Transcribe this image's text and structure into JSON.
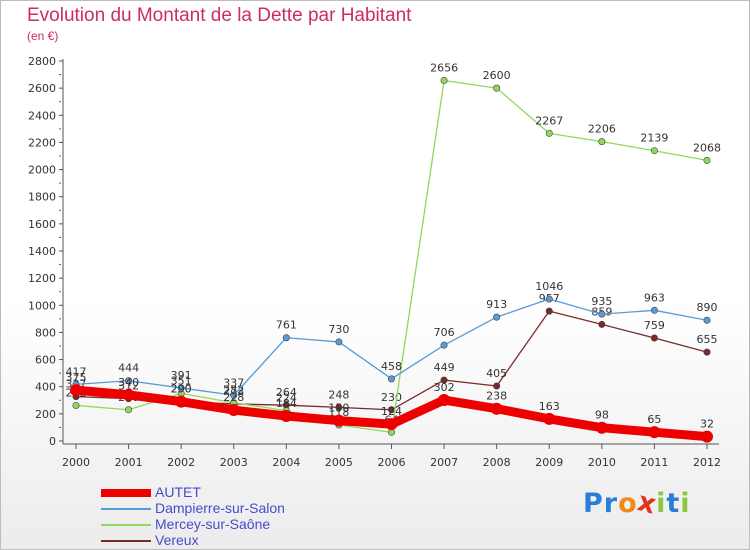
{
  "title": "Evolution du Montant de la Dette par Habitant",
  "subtitle": "(en €)",
  "logo_text": "Proxiti",
  "chart_data": {
    "type": "line",
    "x": [
      "2000",
      "2001",
      "2002",
      "2003",
      "2004",
      "2005",
      "2006",
      "2007",
      "2008",
      "2009",
      "2010",
      "2011",
      "2012"
    ],
    "ylim": [
      0,
      2800
    ],
    "yticks": [
      0,
      200,
      400,
      600,
      800,
      1000,
      1200,
      1400,
      1600,
      1800,
      2000,
      2200,
      2400,
      2600,
      2800
    ],
    "grid": false,
    "legend_position": "bottom-left",
    "series": [
      {
        "name": "Vereux",
        "color": "#7a2a2a",
        "values": [
          327,
          312,
          290,
          273,
          264,
          248,
          230,
          449,
          405,
          957,
          859,
          759,
          655
        ]
      },
      {
        "name": "Mercey-sur-Saône",
        "color": "#90d85a",
        "values": [
          262,
          230,
          351,
          282,
          224,
          118,
          64,
          2656,
          2600,
          2267,
          2206,
          2139,
          2068
        ]
      },
      {
        "name": "Dampierre-sur-Salon",
        "color": "#5a9ad6",
        "values": [
          417,
          444,
          391,
          337,
          761,
          730,
          458,
          706,
          913,
          1046,
          935,
          963,
          890
        ]
      },
      {
        "name": "AUTET",
        "color": "#ee0000",
        "values": [
          375,
          340,
          290,
          228,
          184,
          150,
          124,
          302,
          238,
          163,
          98,
          65,
          32
        ]
      }
    ]
  }
}
